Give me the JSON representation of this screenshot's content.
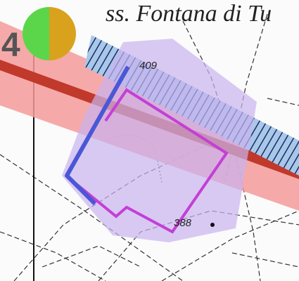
{
  "map": {
    "road_label": "ss. Fontana di Tu",
    "sheet_number": "4",
    "spot_heights": [
      "409",
      "388"
    ]
  }
}
